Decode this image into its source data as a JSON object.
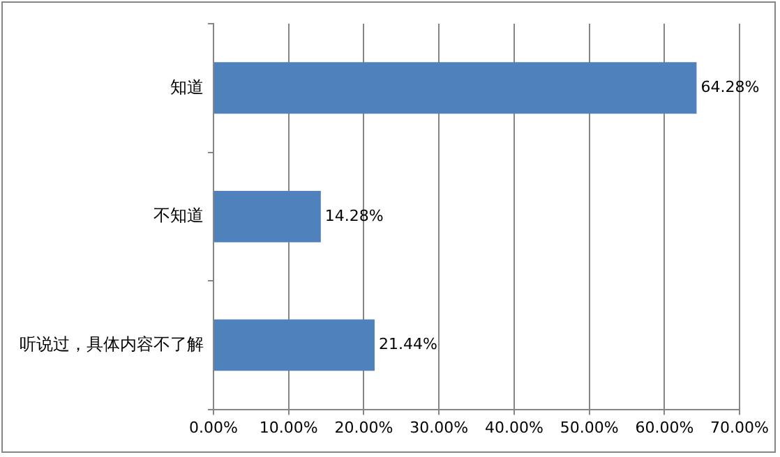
{
  "chart_data": {
    "type": "bar",
    "orientation": "horizontal",
    "categories": [
      "知道",
      "不知道",
      "听说过，具体内容不了解"
    ],
    "values": [
      64.28,
      14.28,
      21.44
    ],
    "color": "#4f81bd",
    "value_labels": [
      "64.28%",
      "14.28%",
      "21.44%"
    ],
    "xlim": [
      0,
      70
    ],
    "xticks": [
      {
        "value": 0,
        "label": "0.00%"
      },
      {
        "value": 10,
        "label": "10.00%"
      },
      {
        "value": 20,
        "label": "20.00%"
      },
      {
        "value": 30,
        "label": "30.00%"
      },
      {
        "value": 40,
        "label": "40.00%"
      },
      {
        "value": 50,
        "label": "50.00%"
      },
      {
        "value": 60,
        "label": "60.00%"
      },
      {
        "value": 70,
        "label": "70.00%"
      }
    ],
    "grid": "x",
    "legend": false
  }
}
